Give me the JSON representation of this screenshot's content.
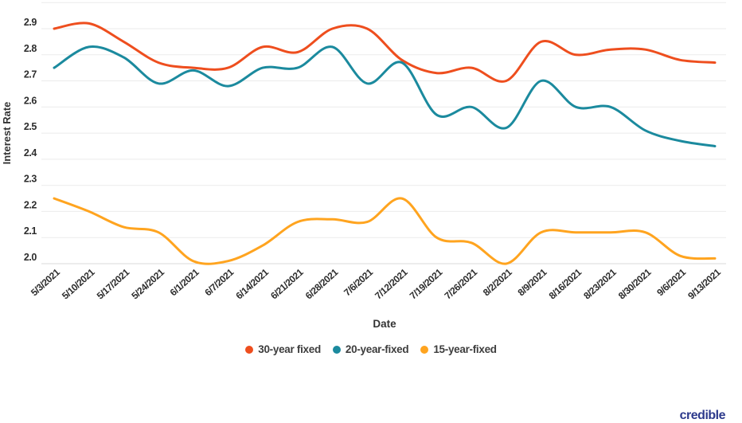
{
  "chart_data": {
    "type": "line",
    "title": "",
    "xlabel": "Date",
    "ylabel": "Interest Rate",
    "x": [
      "5/3/2021",
      "5/10/2021",
      "5/17/2021",
      "5/24/2021",
      "6/1/2021",
      "6/7/2021",
      "6/14/2021",
      "6/21/2021",
      "6/28/2021",
      "7/6/2021",
      "7/12/2021",
      "7/19/2021",
      "7/26/2021",
      "8/2/2021",
      "8/9/2021",
      "8/16/2021",
      "8/23/2021",
      "8/30/2021",
      "9/6/2021",
      "9/13/2021"
    ],
    "series": [
      {
        "name": "30-year fixed",
        "color": "#EE4E1E",
        "values": [
          2.9,
          2.92,
          2.85,
          2.77,
          2.75,
          2.75,
          2.83,
          2.81,
          2.9,
          2.9,
          2.78,
          2.73,
          2.75,
          2.7,
          2.85,
          2.8,
          2.82,
          2.82,
          2.78,
          2.77
        ]
      },
      {
        "name": "20-year-fixed",
        "color": "#1B8A9E",
        "values": [
          2.75,
          2.83,
          2.79,
          2.69,
          2.74,
          2.68,
          2.75,
          2.75,
          2.83,
          2.69,
          2.77,
          2.57,
          2.6,
          2.52,
          2.7,
          2.6,
          2.6,
          2.51,
          2.47,
          2.45
        ]
      },
      {
        "name": "15-year-fixed",
        "color": "#FFA41F",
        "values": [
          2.25,
          2.2,
          2.14,
          2.12,
          2.01,
          2.01,
          2.07,
          2.16,
          2.17,
          2.16,
          2.25,
          2.1,
          2.08,
          2.0,
          2.12,
          2.12,
          2.12,
          2.12,
          2.03,
          2.02
        ]
      }
    ],
    "ylim": [
      2.0,
      3.0
    ],
    "ytick_step": 0.1,
    "ytick_labels": [
      "2.0",
      "2.1",
      "2.2",
      "2.3",
      "2.4",
      "2.5",
      "2.6",
      "2.7",
      "2.8",
      "2.9"
    ],
    "grid": true,
    "legend_position": "bottom"
  },
  "branding": {
    "logo_text": "credible",
    "color": "#2D3A8C"
  },
  "style": {
    "gridline_color": "#ebebeb",
    "baseline_color": "#d8d8d8",
    "tick_color": "#2d2d2d",
    "axis_title_color": "#333333"
  }
}
